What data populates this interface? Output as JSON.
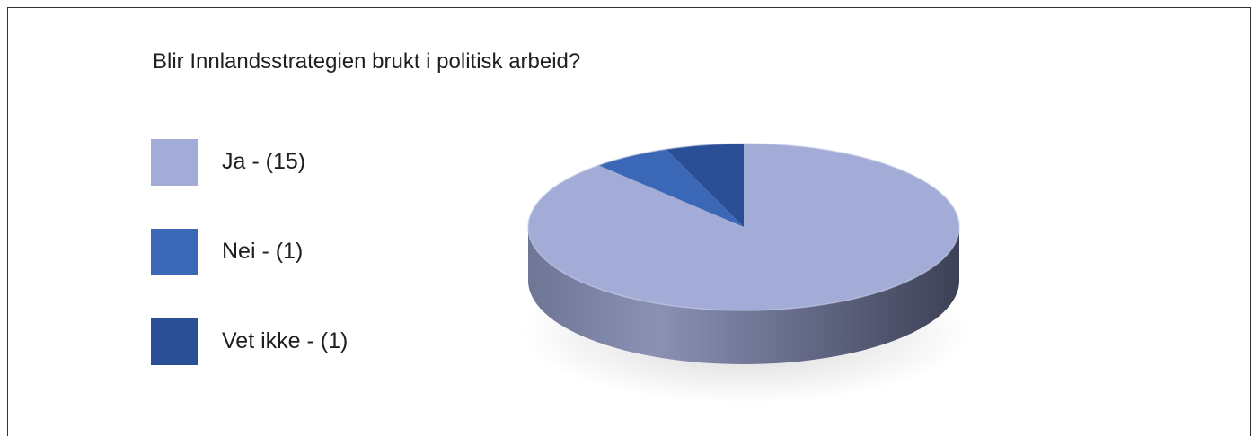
{
  "chart_data": {
    "type": "pie",
    "title": "Blir Innlandsstrategien brukt i politisk arbeid?",
    "categories": [
      "Ja",
      "Nei",
      "Vet ikke"
    ],
    "values": [
      15,
      1,
      1
    ],
    "legend_labels": [
      "Ja - (15)",
      "Nei - (1)",
      "Vet ikke - (1)"
    ],
    "colors": [
      "#a3acd6",
      "#3a68b7",
      "#2a4f97"
    ],
    "side_colors": [
      "#7c84a6",
      "#30528f",
      "#223f78"
    ],
    "legend_position": "left",
    "style": "3d"
  }
}
